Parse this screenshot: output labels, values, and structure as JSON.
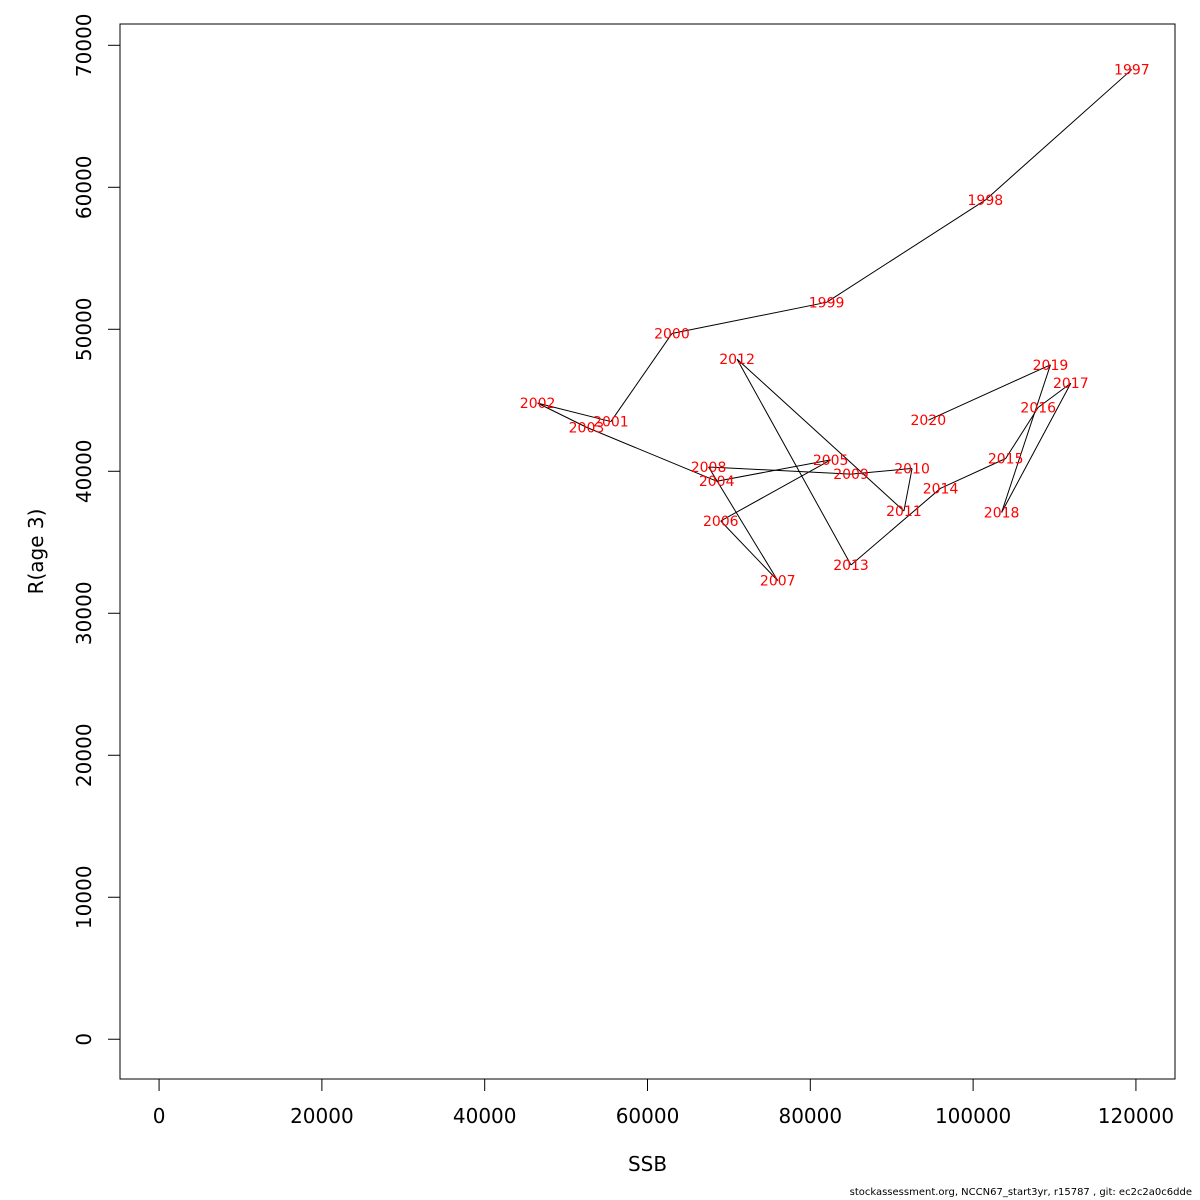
{
  "chart_data": {
    "type": "line",
    "xlabel": "SSB",
    "ylabel": "R(age 3)",
    "xlim": [
      -4800,
      124800
    ],
    "ylim": [
      -2800,
      71500
    ],
    "x_ticks": [
      0,
      20000,
      40000,
      60000,
      80000,
      100000,
      120000
    ],
    "y_ticks": [
      0,
      10000,
      20000,
      30000,
      40000,
      50000,
      60000,
      70000
    ],
    "label_color": "#ff0000",
    "line_color": "#000000",
    "series": [
      {
        "labels": [
          "1997",
          "1998",
          "1999",
          "2000",
          "2001",
          "2002",
          "2003",
          "2004",
          "2005",
          "2006",
          "2007",
          "2008",
          "2009",
          "2010",
          "2011",
          "2012",
          "2013",
          "2014",
          "2015",
          "2016",
          "2017",
          "2018",
          "2019",
          "2020"
        ],
        "x": [
          119500,
          101500,
          82000,
          63000,
          55500,
          46500,
          52500,
          68500,
          82500,
          69000,
          76000,
          67500,
          85000,
          92500,
          91500,
          71000,
          85000,
          96000,
          104000,
          108000,
          112000,
          103500,
          109500,
          94500
        ],
        "y": [
          68300,
          59100,
          51900,
          49700,
          43500,
          44800,
          43100,
          39300,
          40800,
          36500,
          32300,
          40300,
          39800,
          40200,
          37200,
          47900,
          33400,
          38800,
          40900,
          44500,
          46200,
          37100,
          47500,
          43600
        ]
      }
    ]
  },
  "footer": "stockassessment.org, NCCN67_start3yr, r15787 , git: ec2c2a0c6dde"
}
